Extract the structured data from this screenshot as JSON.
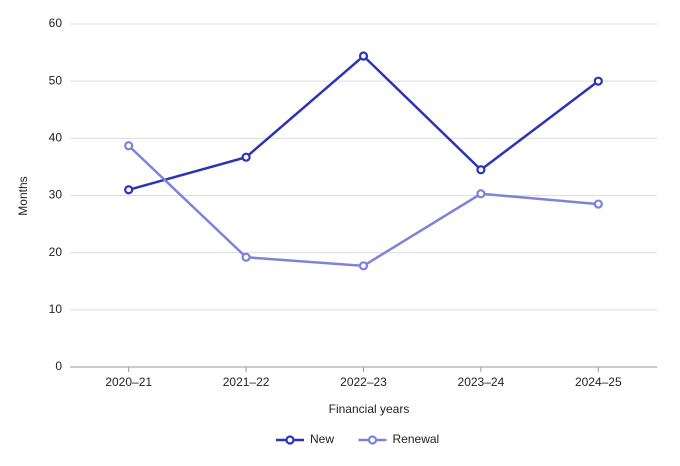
{
  "chart_data": {
    "type": "line",
    "x_label": "Financial years",
    "y_label": "Months",
    "categories": [
      "2020–21",
      "2021–22",
      "2022–23",
      "2023–24",
      "2024–25"
    ],
    "series": [
      {
        "name": "New",
        "color": "#2b34b5",
        "values": [
          31,
          36.7,
          54.4,
          34.5,
          50
        ]
      },
      {
        "name": "Renewal",
        "color": "#7c83d8",
        "values": [
          38.7,
          19.2,
          17.7,
          30.3,
          28.5
        ]
      }
    ],
    "ylim": [
      0,
      60
    ],
    "yticks": [
      0,
      10,
      20,
      30,
      40,
      50,
      60
    ],
    "grid": true,
    "legend": "bottom"
  }
}
